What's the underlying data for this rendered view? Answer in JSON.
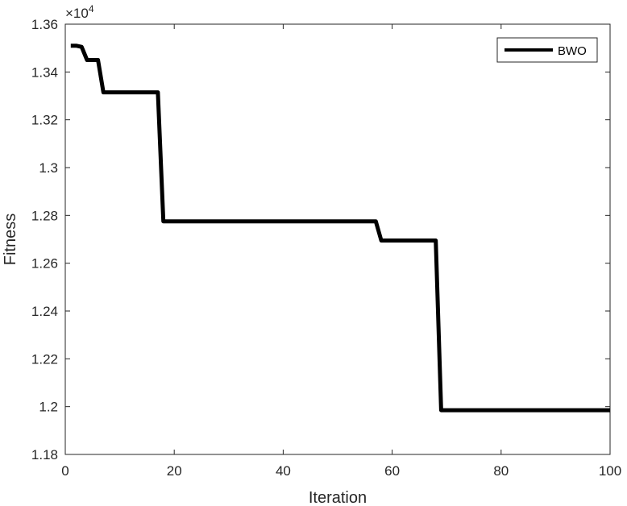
{
  "chart_data": {
    "type": "line",
    "xlabel": "Iteration",
    "ylabel": "Fitness",
    "y_multiplier_base": "×10",
    "y_multiplier_exp": "4",
    "xlim": [
      0,
      100
    ],
    "ylim": [
      1.18,
      1.36
    ],
    "xticks": [
      0,
      20,
      40,
      60,
      80,
      100
    ],
    "xtick_labels": [
      "0",
      "20",
      "40",
      "60",
      "80",
      "100"
    ],
    "yticks": [
      1.18,
      1.2,
      1.22,
      1.24,
      1.26,
      1.28,
      1.3,
      1.32,
      1.34,
      1.36
    ],
    "ytick_labels": [
      "1.18",
      "1.2",
      "1.22",
      "1.24",
      "1.26",
      "1.28",
      "1.3",
      "1.32",
      "1.34",
      "1.36"
    ],
    "grid": false,
    "legend_position": "top-right",
    "series": [
      {
        "name": "BWO",
        "color": "#000000",
        "x": [
          1,
          2,
          3,
          4,
          5,
          6,
          7,
          8,
          17,
          18,
          19,
          57,
          58,
          59,
          68,
          69,
          70,
          100
        ],
        "y": [
          1.351,
          1.351,
          1.3505,
          1.345,
          1.345,
          1.345,
          1.3315,
          1.3315,
          1.3315,
          1.2775,
          1.2775,
          1.2775,
          1.2695,
          1.2695,
          1.2695,
          1.1985,
          1.1985,
          1.1985
        ]
      }
    ]
  }
}
